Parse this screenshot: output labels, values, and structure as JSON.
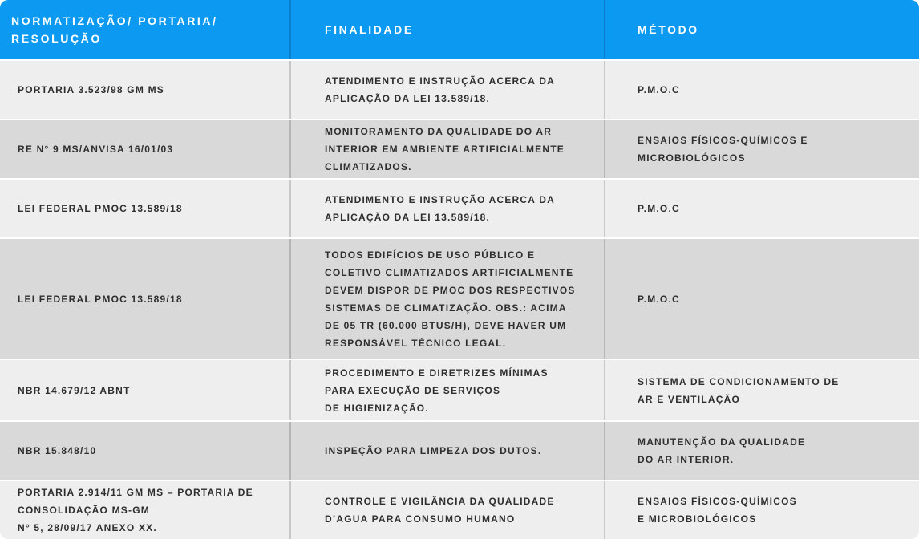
{
  "colors": {
    "header_bg": "#0B99F2",
    "header_text": "#FFFFFF",
    "row_light": "#EEEEEE",
    "row_dark": "#D9D9D9",
    "text": "#2E2E2E"
  },
  "table": {
    "columns": [
      {
        "key": "norma",
        "label": "NORMATIZAÇÃO/ PORTARIA/\nRESOLUÇÃO"
      },
      {
        "key": "finalidade",
        "label": "FINALIDADE"
      },
      {
        "key": "metodo",
        "label": "MÉTODO"
      }
    ],
    "rows": [
      {
        "norma": "PORTARIA 3.523/98 GM MS",
        "finalidade": "ATENDIMENTO E INSTRUÇÃO ACERCA DA\nAPLICAÇÃO DA LEI 13.589/18.",
        "metodo": "P.M.O.C"
      },
      {
        "norma": "RE N° 9 MS/ANVISA 16/01/03",
        "finalidade": "MONITORAMENTO DA QUALIDADE DO AR\nINTERIOR EM AMBIENTE ARTIFICIALMENTE\nCLIMATIZADOS.",
        "metodo": "ENSAIOS FÍSICOS-QUÍMICOS E\nMICROBIOLÓGICOS"
      },
      {
        "norma": "LEI FEDERAL PMOC 13.589/18",
        "finalidade": "ATENDIMENTO E INSTRUÇÃO ACERCA DA\nAPLICAÇÃO DA LEI 13.589/18.",
        "metodo": "P.M.O.C"
      },
      {
        "norma": "LEI FEDERAL PMOC 13.589/18",
        "finalidade": "TODOS EDIFÍCIOS DE USO PÚBLICO E\nCOLETIVO CLIMATIZADOS ARTIFICIALMENTE\nDEVEM DISPOR DE PMOC DOS RESPECTIVOS\nSISTEMAS DE CLIMATIZAÇÃO. OBS.: ACIMA\nDE 05 TR (60.000 BTUS/H), DEVE HAVER UM\nRESPONSÁVEL TÉCNICO LEGAL.",
        "metodo": "P.M.O.C"
      },
      {
        "norma": "NBR 14.679/12 ABNT",
        "finalidade": "PROCEDIMENTO E DIRETRIZES MÍNIMAS\nPARA EXECUÇÃO DE SERVIÇOS\nDE HIGIENIZAÇÃO.",
        "metodo": "SISTEMA DE CONDICIONAMENTO DE\nAR E VENTILAÇÃO"
      },
      {
        "norma": "NBR 15.848/10",
        "finalidade": "INSPEÇÃO PARA LIMPEZA DOS DUTOS.",
        "metodo": "MANUTENÇÃO DA QUALIDADE\nDO AR INTERIOR."
      },
      {
        "norma": "PORTARIA 2.914/11 GM MS – PORTARIA DE\nCONSOLIDAÇÃO MS-GM\nN° 5, 28/09/17 ANEXO XX.",
        "finalidade": "CONTROLE E VIGILÂNCIA DA QUALIDADE\nD’AGUA PARA CONSUMO HUMANO",
        "metodo": "ENSAIOS FÍSICOS-QUÍMICOS\nE MICROBIOLÓGICOS"
      }
    ]
  }
}
